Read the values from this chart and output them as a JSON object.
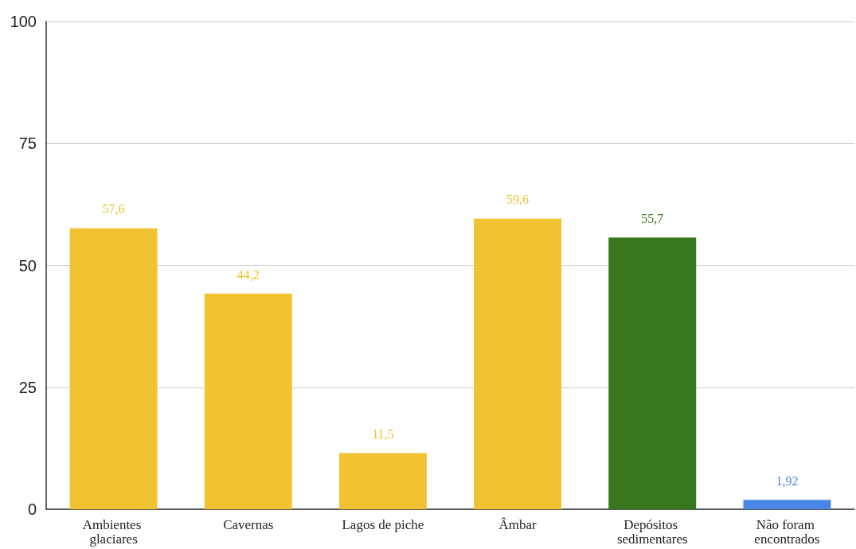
{
  "chart_data": {
    "type": "bar",
    "categories": [
      "Ambientes glaciares",
      "Cavernas",
      "Lagos de piche",
      "Âmbar",
      "Depósitos sedimentares",
      "Não foram encontrados"
    ],
    "values": [
      57.6,
      44.2,
      11.5,
      59.6,
      55.7,
      1.92
    ],
    "colors": [
      "#f1c232",
      "#f1c232",
      "#f1c232",
      "#f1c232",
      "#38761d",
      "#4a86e8"
    ],
    "value_labels": [
      "57,6",
      "44,2",
      "11,5",
      "59,6",
      "55,7",
      "1,92"
    ],
    "ylim": [
      0,
      100
    ],
    "yticks": [
      0,
      25,
      50,
      75,
      100
    ],
    "grid": "y"
  }
}
